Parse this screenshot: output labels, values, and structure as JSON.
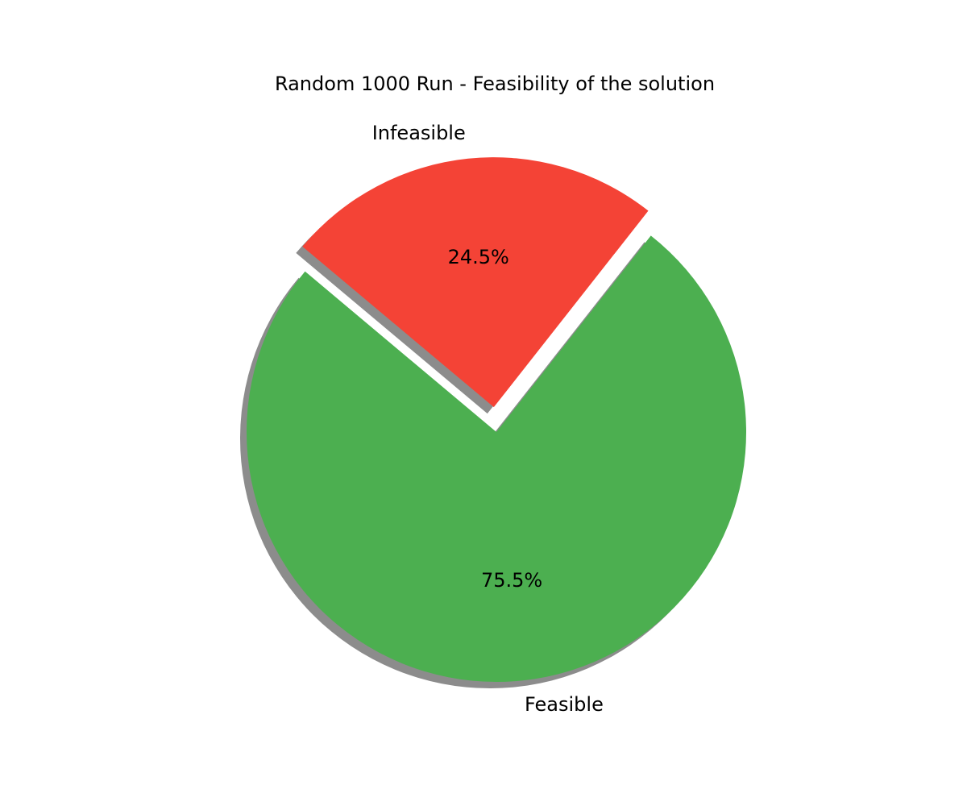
{
  "chart_data": {
    "type": "pie",
    "title": "Random 1000 Run - Feasibility of the solution",
    "slices": [
      {
        "label": "Feasible",
        "value": 75.5,
        "pct_label": "75.5%",
        "color": "#4caf50",
        "explode": 0
      },
      {
        "label": "Infeasible",
        "value": 24.5,
        "pct_label": "24.5%",
        "color": "#f44336",
        "explode": 0.1
      }
    ],
    "start_angle_deg": 140,
    "shadow": true,
    "shadow_color": "#000000"
  }
}
